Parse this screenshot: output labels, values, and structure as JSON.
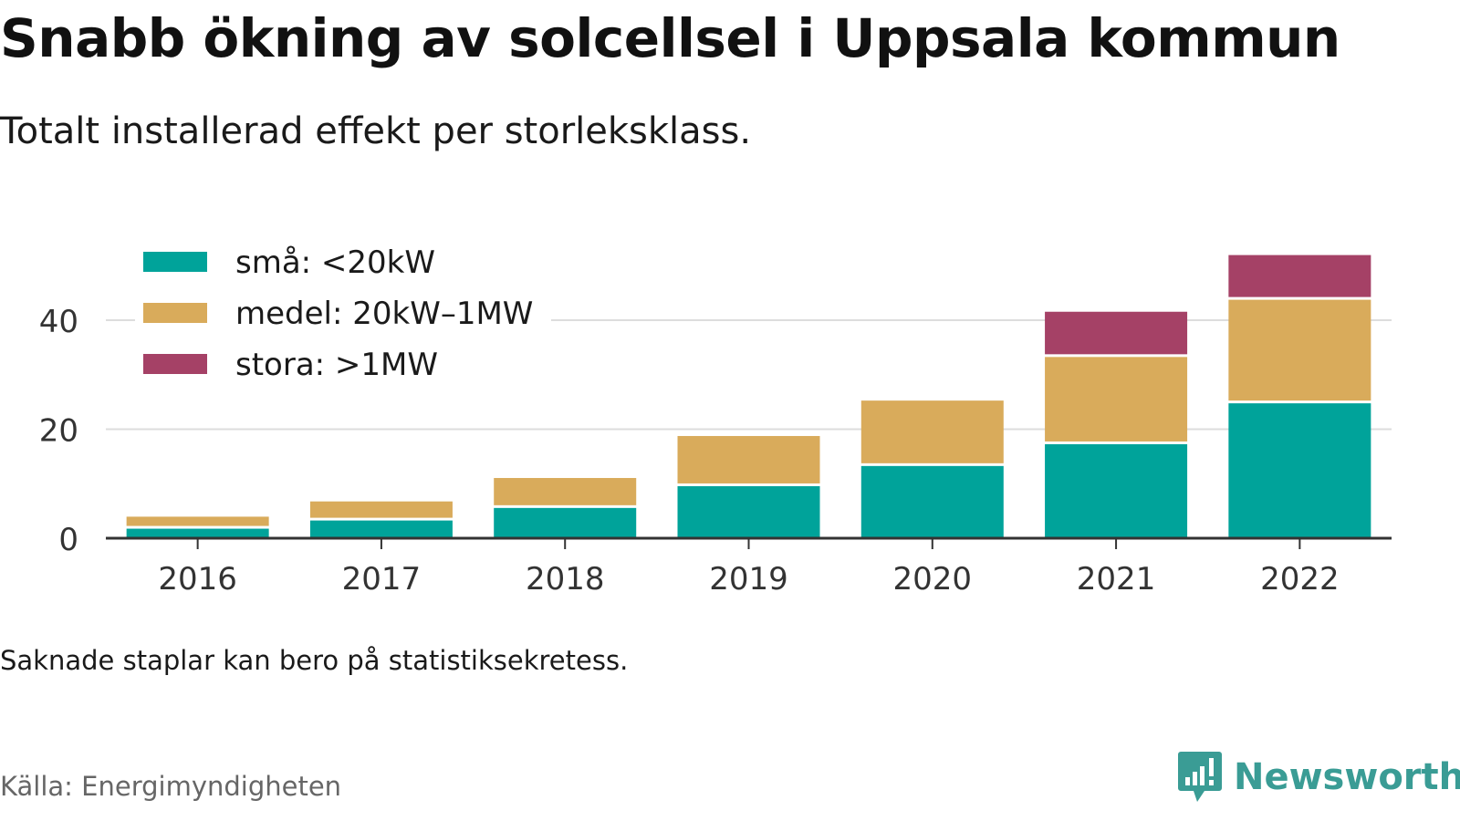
{
  "header": {
    "title": "Snabb ökning av solcellsel i Uppsala kommun",
    "subtitle": "Totalt installerad effekt per storleksklass."
  },
  "footer": {
    "note": "Saknade staplar kan bero på statistiksekretess.",
    "source": "Källa: Energimyndigheten",
    "brand": "Newsworthy",
    "brand_icon": "newsworthy-logo-icon"
  },
  "colors": {
    "sma": "#00a39a",
    "medel": "#d9ab5b",
    "stora": "#a54166",
    "grid": "#dddddd",
    "axis": "#333333",
    "brand": "#3a9c95"
  },
  "chart_data": {
    "type": "bar",
    "stacked": true,
    "categories": [
      "2016",
      "2017",
      "2018",
      "2019",
      "2020",
      "2021",
      "2022"
    ],
    "series": [
      {
        "name": "små: <20kW",
        "color": "#00a39a",
        "values": [
          2.0,
          3.5,
          5.8,
          9.8,
          13.5,
          17.5,
          25.0
        ]
      },
      {
        "name": "medel: 20kW–1MW",
        "color": "#d9ab5b",
        "values": [
          2.2,
          3.5,
          5.5,
          9.2,
          12.0,
          16.0,
          19.0
        ]
      },
      {
        "name": "stora: >1MW",
        "color": "#a54166",
        "values": [
          0,
          0,
          0,
          0,
          0,
          8.3,
          8.2
        ]
      }
    ],
    "ylim": [
      0,
      52
    ],
    "yticks": [
      0,
      20,
      40
    ],
    "xlabel": "",
    "ylabel": "",
    "grid": true,
    "legend": "top-left"
  }
}
